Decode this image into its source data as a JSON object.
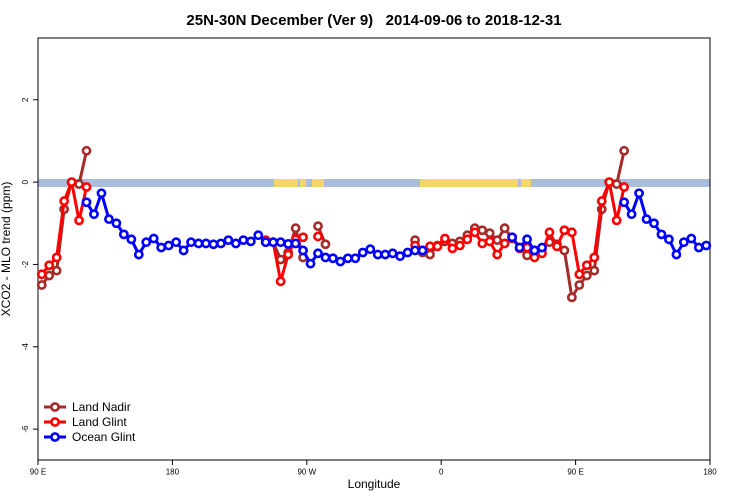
{
  "chart_data": {
    "type": "line",
    "title": "25N-30N December (Ver 9)   2014-09-06 to 2018-12-31",
    "xlabel": "Longitude",
    "ylabel": "XCO2 - MLO trend (ppm)",
    "xlim": [
      90,
      540
    ],
    "xticks": [
      {
        "value": 90,
        "label": "90 E"
      },
      180,
      {
        "value": 270,
        "label": "90 W"
      },
      {
        "value": 360,
        "label": "0"
      },
      {
        "value": 450,
        "label": "90 E"
      },
      {
        "value": 540,
        "label": "180"
      }
    ],
    "ylim": [
      -6.75,
      3.5
    ],
    "yticks": [
      -6,
      -4,
      -2,
      0,
      2
    ],
    "legend": "bottom-left",
    "x": [
      92.5,
      97.5,
      102.5,
      107.5,
      112.5,
      117.5,
      122.5,
      127.5,
      132.5,
      137.5,
      142.5,
      147.5,
      152.5,
      157.5,
      162.5,
      167.5,
      172.5,
      177.5,
      182.5,
      187.5,
      192.5,
      197.5,
      202.5,
      207.5,
      212.5,
      217.5,
      222.5,
      227.5,
      232.5,
      237.5,
      242.5,
      247.5,
      252.5,
      257.5,
      262.5,
      267.5,
      272.5,
      277.5,
      282.5,
      287.5,
      292.5,
      297.5,
      302.5,
      307.5,
      312.5,
      317.5,
      322.5,
      327.5,
      332.5,
      337.5,
      342.5,
      347.5,
      352.5,
      357.5,
      362.5,
      367.5,
      372.5,
      377.5,
      382.5,
      387.5,
      392.5,
      397.5,
      402.5,
      407.5,
      412.5,
      417.5,
      422.5,
      427.5,
      432.5,
      437.5,
      442.5,
      447.5,
      452.5,
      457.5,
      462.5,
      467.5,
      472.5,
      477.5,
      482.5,
      487.5,
      492.5,
      497.5,
      502.5,
      507.5,
      512.5,
      517.5,
      522.5,
      527.5,
      532.5,
      537.5
    ],
    "series": [
      {
        "name": "Land Nadir",
        "color": "#a52a2a",
        "values": [
          -2.5,
          -2.27,
          -2.15,
          -0.66,
          0,
          -0.05,
          0.76,
          null,
          null,
          null,
          null,
          null,
          null,
          null,
          null,
          null,
          null,
          null,
          null,
          null,
          null,
          null,
          null,
          null,
          null,
          null,
          null,
          null,
          null,
          null,
          -1.46,
          -1.46,
          -1.88,
          -1.71,
          -1.12,
          -1.83,
          null,
          -1.07,
          -1.51,
          null,
          null,
          null,
          null,
          null,
          null,
          null,
          null,
          null,
          null,
          null,
          -1.41,
          -1.71,
          -1.76,
          -1.54,
          -1.44,
          -1.49,
          -1.44,
          -1.29,
          -1.12,
          -1.17,
          -1.24,
          -1.41,
          -1.12,
          -1.37,
          -1.59,
          -1.78,
          -1.66,
          -1.63,
          -1.46,
          -1.51,
          -1.66,
          -2.8,
          -2.5,
          -2.27,
          -2.15,
          -0.66,
          0,
          -0.05,
          0.76,
          null,
          null,
          null,
          null,
          null,
          null,
          null,
          null,
          null,
          null,
          null
        ]
      },
      {
        "name": "Land Glint",
        "color": "#ff0000",
        "values": [
          -2.24,
          -2.02,
          -1.83,
          -0.46,
          0,
          -0.93,
          -0.12,
          null,
          null,
          null,
          null,
          null,
          null,
          null,
          null,
          null,
          null,
          null,
          null,
          null,
          null,
          null,
          null,
          null,
          null,
          null,
          null,
          null,
          null,
          null,
          -1.41,
          -1.46,
          -2.41,
          -1.76,
          -1.39,
          -1.34,
          null,
          -1.32,
          null,
          null,
          null,
          null,
          null,
          null,
          null,
          null,
          null,
          null,
          null,
          null,
          -1.54,
          -1.66,
          -1.56,
          -1.56,
          -1.37,
          -1.61,
          -1.54,
          -1.39,
          -1.22,
          -1.49,
          -1.44,
          -1.76,
          -1.49,
          -1.34,
          -1.61,
          -1.59,
          -1.83,
          -1.73,
          -1.22,
          -1.56,
          -1.17,
          -1.22,
          -2.24,
          -2.02,
          -1.83,
          -0.46,
          0,
          -0.93,
          -0.12,
          null,
          null,
          null,
          null,
          null,
          null,
          null,
          null,
          null,
          null,
          null
        ]
      },
      {
        "name": "Ocean Glint",
        "color": "#0000ff",
        "values": [
          null,
          null,
          null,
          null,
          null,
          null,
          -0.49,
          -0.78,
          -0.27,
          -0.9,
          -1.0,
          -1.27,
          -1.39,
          -1.76,
          -1.46,
          -1.37,
          -1.59,
          -1.54,
          -1.46,
          -1.66,
          -1.46,
          -1.49,
          -1.49,
          -1.51,
          -1.49,
          -1.41,
          -1.49,
          -1.41,
          -1.44,
          -1.29,
          -1.46,
          -1.46,
          -1.46,
          -1.5,
          -1.49,
          -1.66,
          -1.98,
          -1.73,
          -1.83,
          -1.85,
          -1.93,
          -1.85,
          -1.85,
          -1.71,
          -1.63,
          -1.76,
          -1.76,
          -1.73,
          -1.8,
          -1.71,
          -1.66,
          -1.66,
          null,
          null,
          null,
          null,
          null,
          null,
          null,
          null,
          null,
          null,
          null,
          -1.34,
          -1.59,
          -1.39,
          -1.66,
          -1.59,
          null,
          null,
          null,
          null,
          null,
          null,
          null,
          null,
          null,
          null,
          -0.49,
          -0.78,
          -0.27,
          -0.9,
          -1.0,
          -1.27,
          -1.39,
          -1.76,
          -1.46,
          -1.37,
          -1.59,
          -1.54
        ]
      }
    ]
  }
}
